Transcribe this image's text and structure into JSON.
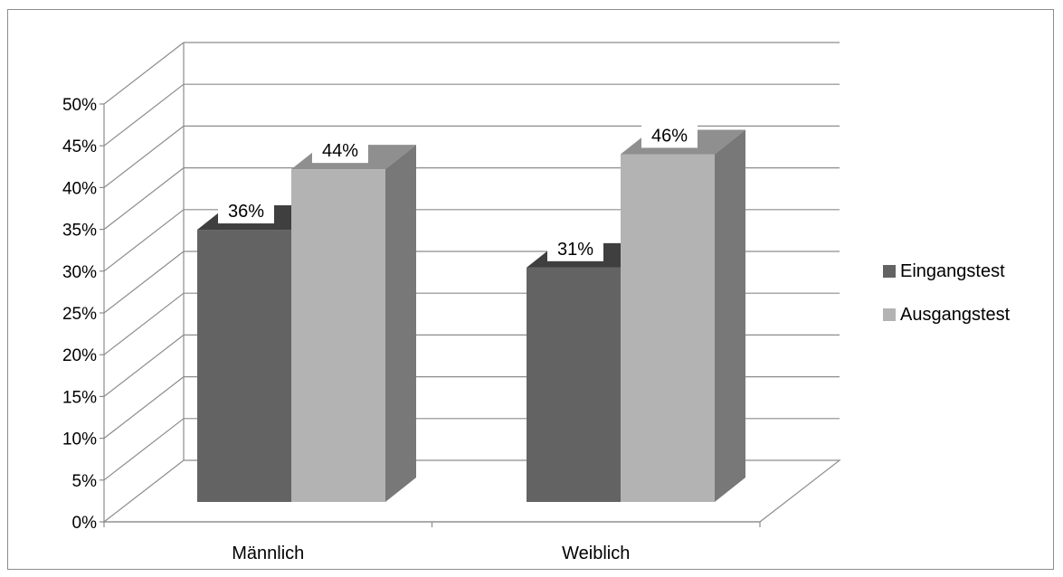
{
  "chart_data": {
    "type": "bar",
    "categories": [
      "Männlich",
      "Weiblich"
    ],
    "series": [
      {
        "name": "Eingangstest",
        "values": [
          36,
          31
        ],
        "color": "#636363",
        "top_color": "#3f3f3f",
        "side_color": "#4a4a4a"
      },
      {
        "name": "Ausgangstest",
        "values": [
          44,
          46
        ],
        "color": "#b3b3b3",
        "top_color": "#8f8f8f",
        "side_color": "#787878"
      }
    ],
    "data_labels": [
      "36%",
      "31%",
      "44%",
      "46%"
    ],
    "ylim": [
      0,
      50
    ],
    "y_ticks": [
      "0%",
      "5%",
      "10%",
      "15%",
      "20%",
      "25%",
      "30%",
      "35%",
      "40%",
      "45%",
      "50%"
    ],
    "legend_position": "right",
    "grid": true,
    "style": "3d-clustered-column"
  }
}
